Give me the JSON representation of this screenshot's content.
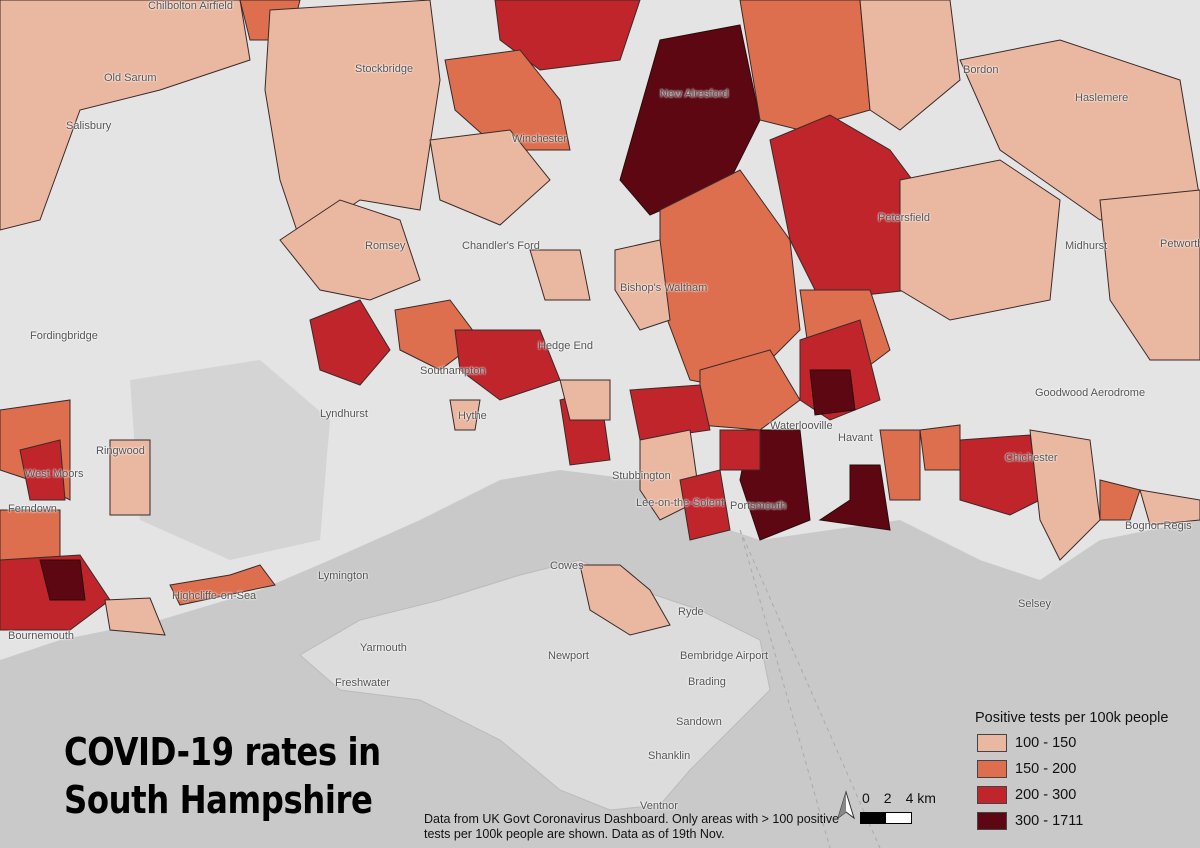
{
  "title_lines": [
    "COVID-19 rates in",
    "South Hampshire"
  ],
  "source_note": "Data from UK Govt Coronavirus Dashboard. Only areas with > 100 positive tests per 100k people are shown. Data as of 19th Nov.",
  "legend": {
    "title": "Positive tests per 100k people",
    "items": [
      {
        "label": "100 - 150",
        "color": "#eab7a0"
      },
      {
        "label": "150 - 200",
        "color": "#dd6e4e"
      },
      {
        "label": "200 - 300",
        "color": "#bf252b"
      },
      {
        "label": "300 - 1711",
        "color": "#5c0712"
      }
    ]
  },
  "scale_bar": {
    "labels": [
      "0",
      "2",
      "4 km"
    ]
  },
  "north_arrow": "north-arrow-icon",
  "colors": {
    "land": "#e4e4e4",
    "sea": "#c9c9c9"
  },
  "places": [
    "Chilbolton Airfield",
    "Old Sarum",
    "Stockbridge",
    "Salisbury",
    "Winchester",
    "New Alresford",
    "Bordon",
    "Haslemere",
    "Petersfield",
    "Midhurst",
    "Petworth",
    "Romsey",
    "Chandler's Ford",
    "Bishop's Waltham",
    "Fordingbridge",
    "Southampton",
    "Hedge End",
    "Lyndhurst",
    "Ringwood",
    "Hythe",
    "Waterlooville",
    "Havant",
    "Chichester",
    "Bognor Regis",
    "Stubbington",
    "Lee-on-the-Solent",
    "Portsmouth",
    "West Moors",
    "Ferndown",
    "Lymington",
    "Highcliffe-on-Sea",
    "Bournemouth",
    "Cowes",
    "Ryde",
    "Yarmouth",
    "Newport",
    "Freshwater",
    "Bembridge Airport",
    "Brading",
    "Sandown",
    "Shanklin",
    "Ventnor",
    "Selsey",
    "Goodwood Aerodrome"
  ]
}
